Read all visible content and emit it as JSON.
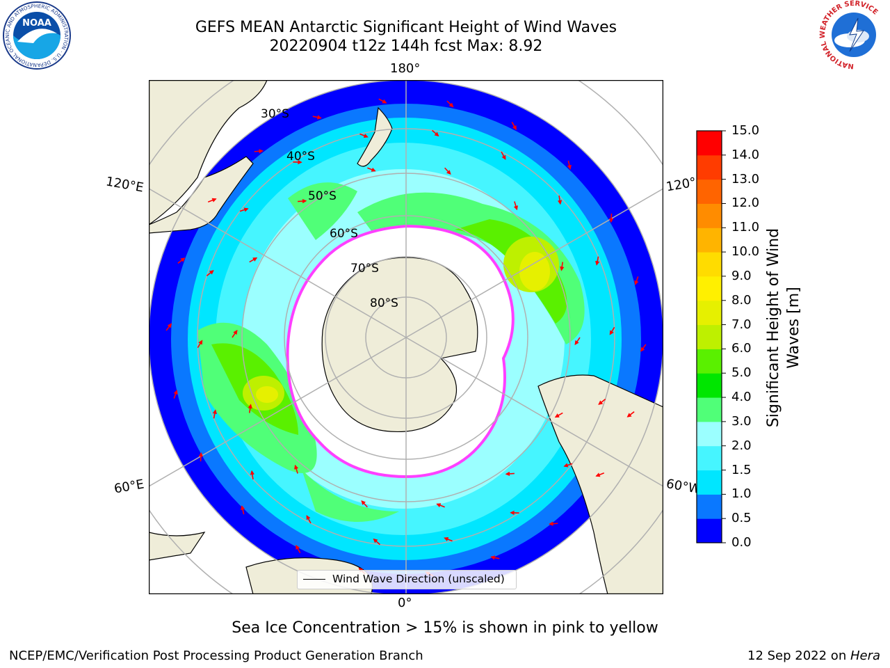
{
  "title": {
    "line1": "GEFS MEAN Antarctic Significant Height of Wind Waves",
    "line2": "20220904 t12z 144h fcst   Max: 8.92"
  },
  "logos": {
    "noaa": "NOAA",
    "noaa_ring": "NATIONAL OCEANIC AND ATMOSPHERIC ADMINISTRATION · U.S. DEPARTMENT OF COMMERCE",
    "nws_ring": "NATIONAL WEATHER SERVICE"
  },
  "map": {
    "lon_labels": {
      "top": "180°",
      "bottom": "0°",
      "left_upper": "120°E",
      "left_lower": "60°E",
      "right_upper": "120°",
      "right_lower": "60°W"
    },
    "lat_labels": [
      "30°S",
      "40°S",
      "50°S",
      "60°S",
      "70°S",
      "80°S"
    ],
    "colors": {
      "land": "#efedd9",
      "ice": "#ffffff",
      "ice_edge": "#ff40ff",
      "arrow": "#ff0000",
      "grid": "#b0b0b0"
    }
  },
  "legend": {
    "label": "Wind Wave Direction (unscaled)"
  },
  "colorbar": {
    "label": "Significant Height of Wind Waves [m]",
    "ticks": [
      "0.0",
      "0.5",
      "1.0",
      "1.5",
      "2.0",
      "3.0",
      "4.0",
      "5.0",
      "6.0",
      "7.0",
      "8.0",
      "9.0",
      "10.0",
      "11.0",
      "12.0",
      "13.0",
      "14.0",
      "15.0"
    ],
    "colors": [
      "#0000ff",
      "#0a78ff",
      "#00e6ff",
      "#46f5ff",
      "#9bffff",
      "#50ff78",
      "#00e600",
      "#5af000",
      "#bef000",
      "#e6f000",
      "#fff000",
      "#ffdc00",
      "#ffb400",
      "#ff8c00",
      "#ff6400",
      "#ff3c00",
      "#ff0000"
    ]
  },
  "footer": {
    "note": "Sea Ice Concentration > 15% is shown in pink to yellow",
    "left": "NCEP/EMC/Verification Post Processing Product Generation Branch",
    "right_prefix": "12 Sep 2022 on ",
    "right_host": "Hera"
  }
}
